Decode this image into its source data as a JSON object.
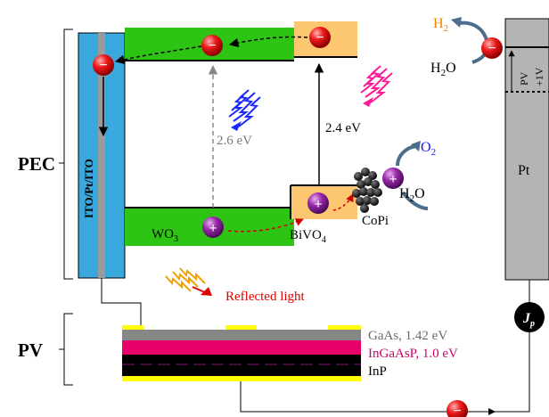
{
  "labels": {
    "pec": "PEC",
    "pv": "PV",
    "ito": "ITO/Pt/ITO",
    "wo3": "WO",
    "wo3_sub": "3",
    "bivo4": "BiVO",
    "bivo4_sub": "4",
    "copi": "CoPi",
    "pt": "Pt",
    "gap_wo3": "2.6 eV",
    "gap_bivo4": "2.4 eV",
    "reflected": "Reflected light",
    "gaas": "GaAs, 1.42 eV",
    "ingaasp": "InGaAsP, 1.0 eV",
    "inp": "InP",
    "h2": "H",
    "h2_sub": "2",
    "h2o_top": "H",
    "h2o_top_sub": "2",
    "h2o_top_end": "O",
    "o2": "O",
    "o2_sub": "2",
    "h2o_right": "H",
    "h2o_right_sub": "2",
    "h2o_right_end": "O",
    "pv_vertical": "PV",
    "plus_1v": "+1V",
    "jp": "J",
    "jp_sub": "p",
    "minus": "−",
    "plus": "+"
  },
  "colors": {
    "ito_blue": "#3aa8dd",
    "wo3_green": "#2ec414",
    "bivo4_orange": "#fdc671",
    "pt_gray": "#b4b4b4",
    "gaas_gray": "#878787",
    "ingaasp_magenta": "#e8006a",
    "contact_yellow": "#ffff00",
    "electron_red": "#e00000",
    "hole_purple": "#8a1a9a",
    "h2_orange": "#f08000",
    "o2_blue": "#1a1aff",
    "gap_gray": "#7a7a7a",
    "reflected_red": "#e00000",
    "ingaasp_text": "#d0006a"
  },
  "icons": {
    "electron": "electron-icon",
    "hole": "hole-icon",
    "photon": "photon-icon",
    "catalyst": "copi-catalyst-icon"
  }
}
